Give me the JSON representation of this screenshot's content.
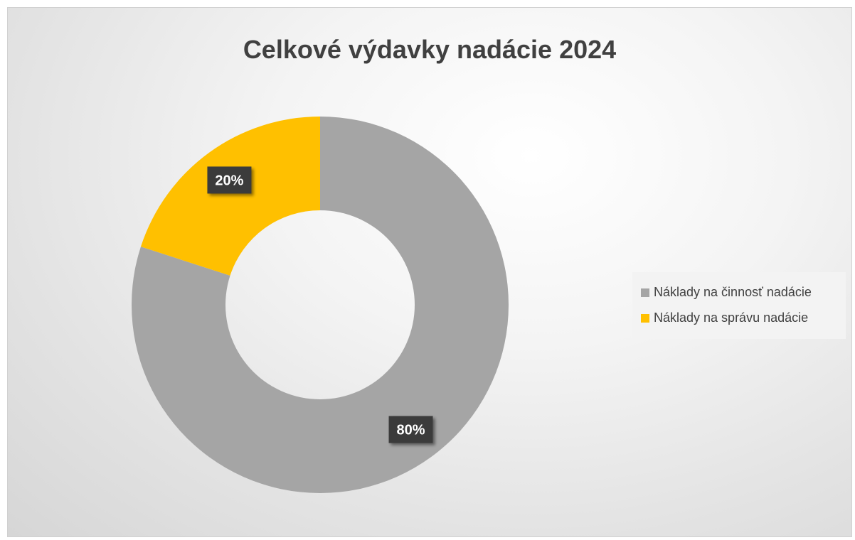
{
  "chart_data": {
    "type": "pie",
    "variant": "doughnut",
    "title": "Celkové výdavky nadácie 2024",
    "categories": [
      "Náklady na činnosť nadácie",
      "Náklady na správu nadácie"
    ],
    "values": [
      80,
      20
    ],
    "data_labels": [
      "80%",
      "20%"
    ],
    "colors": [
      "#a5a5a5",
      "#ffc000"
    ],
    "legend_position": "right",
    "start_angle": "top",
    "direction": "clockwise"
  }
}
